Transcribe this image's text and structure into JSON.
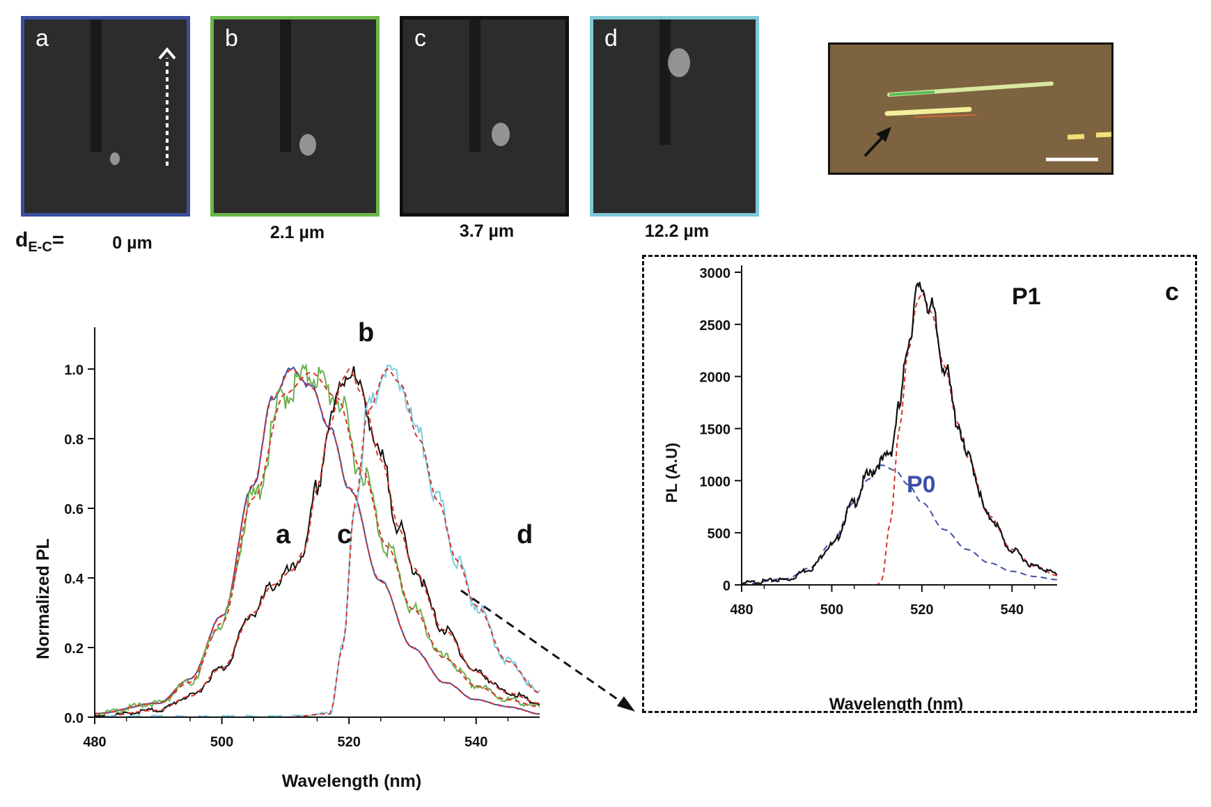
{
  "images": {
    "panels": [
      {
        "letter": "a",
        "distance": "0 µm",
        "border": "#3a4fa0"
      },
      {
        "letter": "b",
        "distance": "2.1 µm",
        "border": "#6cb84a"
      },
      {
        "letter": "c",
        "distance": "3.7 µm",
        "border": "#111111"
      },
      {
        "letter": "d",
        "distance": "12.2 µm",
        "border": "#7fc8d8"
      }
    ],
    "distance_prefix": "d",
    "distance_sub": "E-C",
    "distance_eq": "="
  },
  "colors": {
    "curve_a": "#3d4fa6",
    "curve_b": "#6ab04c",
    "curve_c": "#111111",
    "curve_d": "#7ccde0",
    "fit": "#d9342b",
    "fit_p0": "#3d4fa6",
    "p0_label": "#3d4fa6"
  },
  "chart_data": [
    {
      "type": "line",
      "xlabel": "Wavelength (nm)",
      "ylabel": "Normalized PL",
      "xlim": [
        480,
        550
      ],
      "ylim": [
        0,
        1.1
      ],
      "xticks": [
        480,
        500,
        520,
        540
      ],
      "yticks": [
        "0.0",
        "0.2",
        "0.4",
        "0.6",
        "0.8",
        "1.0"
      ],
      "curve_labels": [
        "a",
        "b",
        "c",
        "d"
      ],
      "series": [
        {
          "name": "a",
          "peak": 511,
          "sigma_left": 7.2,
          "sigma_right": 8.6,
          "x": [
            480,
            490,
            495,
            500,
            505,
            508,
            511,
            514,
            517,
            520,
            525,
            530,
            535,
            540,
            545,
            550
          ],
          "y": [
            0.01,
            0.04,
            0.11,
            0.29,
            0.67,
            0.92,
            1.0,
            0.95,
            0.83,
            0.66,
            0.39,
            0.2,
            0.1,
            0.05,
            0.03,
            0.01
          ]
        },
        {
          "name": "b",
          "peak": 514,
          "sigma_left": 8.0,
          "sigma_right": 9.5,
          "x": [
            480,
            490,
            495,
            500,
            505,
            510,
            514,
            518,
            522,
            526,
            530,
            535,
            540,
            545,
            550
          ],
          "y": [
            0.01,
            0.04,
            0.1,
            0.27,
            0.63,
            0.93,
            0.99,
            0.92,
            0.71,
            0.49,
            0.31,
            0.17,
            0.09,
            0.05,
            0.03
          ]
        },
        {
          "name": "c",
          "x": [
            480,
            490,
            495,
            500,
            505,
            508,
            511,
            513,
            515,
            517,
            519,
            520,
            522,
            525,
            528,
            530,
            535,
            540,
            545,
            550
          ],
          "y": [
            0.0,
            0.02,
            0.06,
            0.14,
            0.3,
            0.38,
            0.42,
            0.48,
            0.66,
            0.84,
            0.97,
            1.0,
            0.93,
            0.74,
            0.54,
            0.43,
            0.25,
            0.13,
            0.07,
            0.04
          ]
        },
        {
          "name": "d",
          "x": [
            480,
            510,
            517,
            519,
            521,
            523,
            526,
            528,
            531,
            534,
            537,
            540,
            545,
            550
          ],
          "y": [
            0.0,
            0.0,
            0.01,
            0.2,
            0.62,
            0.88,
            1.0,
            0.96,
            0.8,
            0.62,
            0.45,
            0.32,
            0.16,
            0.07
          ]
        }
      ]
    },
    {
      "type": "line",
      "panel_label": "c",
      "xlabel": "Wavelength (nm)",
      "ylabel": "PL (A.U)",
      "xlim": [
        480,
        550
      ],
      "ylim": [
        0,
        3000
      ],
      "xticks": [
        480,
        500,
        520,
        540
      ],
      "yticks": [
        0,
        500,
        1000,
        1500,
        2000,
        2500,
        3000
      ],
      "peak_labels": [
        "P0",
        "P1"
      ],
      "series": [
        {
          "name": "data",
          "x": [
            480,
            490,
            495,
            500,
            505,
            508,
            511,
            513,
            515,
            517,
            519,
            520,
            522,
            525,
            528,
            530,
            535,
            540,
            545,
            550
          ],
          "y": [
            20,
            50,
            150,
            380,
            790,
            1050,
            1180,
            1280,
            1700,
            2350,
            2800,
            2850,
            2650,
            2100,
            1550,
            1230,
            650,
            330,
            180,
            110
          ]
        },
        {
          "name": "P0 fit",
          "x": [
            480,
            490,
            495,
            500,
            505,
            508,
            511,
            514,
            517,
            520,
            525,
            530,
            535,
            540,
            545,
            550
          ],
          "y": [
            5,
            60,
            160,
            400,
            790,
            1010,
            1150,
            1100,
            960,
            790,
            530,
            340,
            210,
            130,
            80,
            50
          ]
        },
        {
          "name": "P1 fit",
          "x": [
            480,
            510,
            511,
            513,
            515,
            517,
            519,
            520,
            522,
            525,
            528,
            530,
            535,
            540,
            545,
            550
          ],
          "y": [
            0,
            0,
            30,
            600,
            1500,
            2250,
            2720,
            2800,
            2620,
            2100,
            1550,
            1230,
            660,
            340,
            180,
            90
          ]
        }
      ]
    }
  ]
}
